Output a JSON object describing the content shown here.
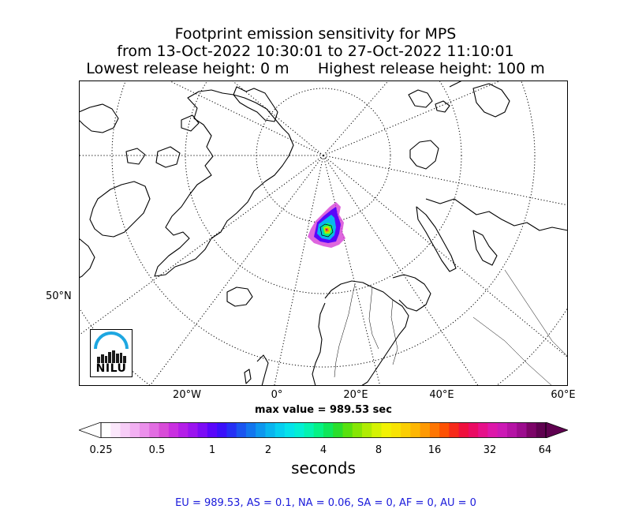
{
  "title": {
    "line1": "Footprint emission sensitivity for MPS",
    "line2": "from 13-Oct-2022 10:30:01 to 27-Oct-2022 11:10:01",
    "line3": "Lowest release height: 0 m      Highest release height: 100 m"
  },
  "map": {
    "projection": "north-polar-stereographic",
    "lon_labels": [
      "20°W",
      "0°",
      "20°E",
      "40°E",
      "60°E"
    ],
    "lat_label": "50°N",
    "logo_text": "NILU",
    "logo_color": "#1ea7e1"
  },
  "max_value": "max value = 989.53 sec",
  "colorbar": {
    "tick_labels": [
      "0.25",
      "0.5",
      "1",
      "2",
      "4",
      "8",
      "16",
      "32",
      "64"
    ],
    "title": "seconds",
    "colors": [
      "#ffffff",
      "#fbe7fb",
      "#f7cdf7",
      "#f2b0f2",
      "#eb90eb",
      "#e26de2",
      "#d84bd8",
      "#c92fe0",
      "#b41ee8",
      "#9b14ef",
      "#7c0cf5",
      "#5a06fb",
      "#3a10fa",
      "#2530f5",
      "#1a55f0",
      "#1276ee",
      "#0d97ee",
      "#09b5ef",
      "#06cff0",
      "#04e3ea",
      "#03efd4",
      "#04f3b0",
      "#06f285",
      "#0fe75a",
      "#2ade2c",
      "#58e10f",
      "#86e605",
      "#b0ec03",
      "#d5f203",
      "#f2f203",
      "#f8e303",
      "#fbce03",
      "#fdb603",
      "#fe9903",
      "#fe7603",
      "#fd5103",
      "#f62a1a",
      "#ef0f3d",
      "#ea0a63",
      "#e6108a",
      "#dd17aa",
      "#cc19b5",
      "#b513a5",
      "#9c0c8e",
      "#7c0468",
      "#5f0150"
    ]
  },
  "stats": "EU = 989.53,  AS = 0.1,  NA = 0.06,  SA = 0,  AF = 0,  AU = 0"
}
